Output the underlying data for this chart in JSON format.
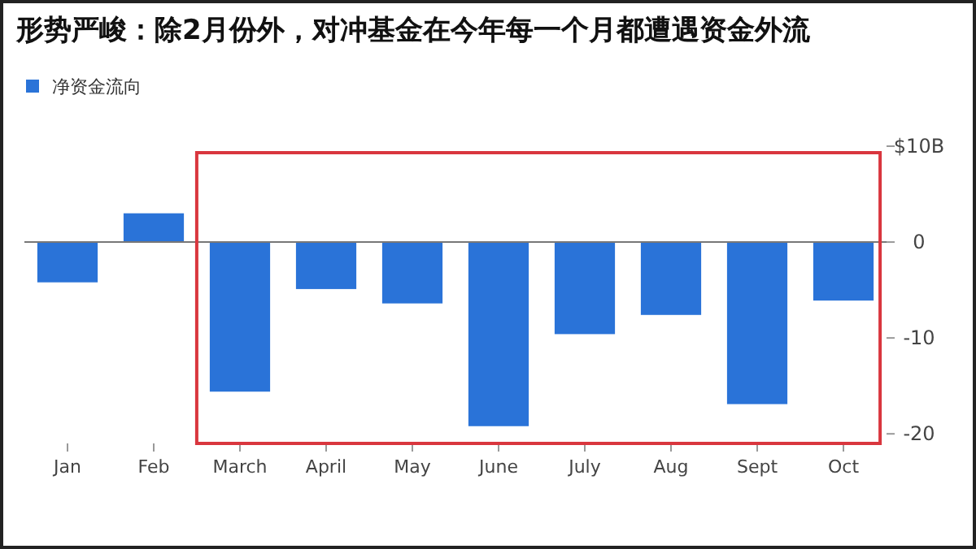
{
  "chart_data": {
    "type": "bar",
    "title": "形势严峻：除2月份外，对冲基金在今年每一个月都遭遇资金外流",
    "categories": [
      "Jan",
      "Feb",
      "March",
      "April",
      "May",
      "June",
      "July",
      "Aug",
      "Sept",
      "Oct"
    ],
    "series": [
      {
        "name": "净资金流向",
        "color": "#2a73d8",
        "values": [
          -4.2,
          3.0,
          -15.6,
          -4.9,
          -6.4,
          -19.2,
          -9.6,
          -7.6,
          -16.9,
          -6.1
        ]
      }
    ],
    "ylim": [
      -21,
      10
    ],
    "yticks": [
      {
        "value": 10,
        "label": "$10B"
      },
      0,
      -10,
      -20
    ],
    "ref_lines": [
      {
        "axis": "y",
        "value": 0,
        "color": "#777777"
      }
    ],
    "legend": "top left"
  }
}
